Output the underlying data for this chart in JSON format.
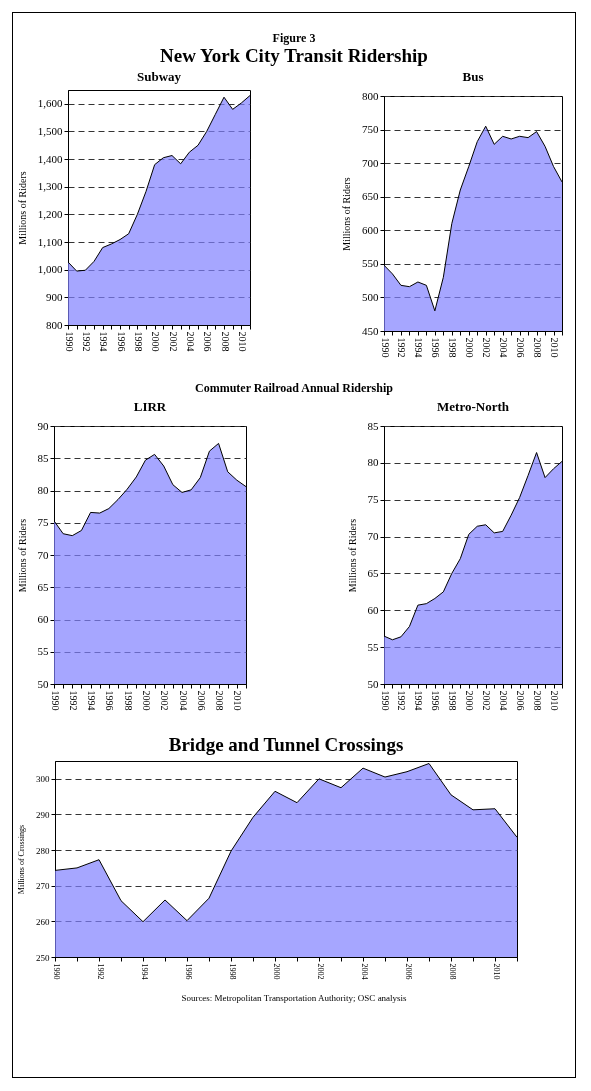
{
  "chart_data": [
    {
      "type": "area",
      "title": "Subway",
      "ylabel": "Millions of Riders",
      "annotations": [
        "Figure 3",
        "New York City Transit Ridership"
      ],
      "categories": [
        "1990",
        null,
        "1992",
        null,
        "1994",
        null,
        "1996",
        null,
        "1998",
        null,
        "2000",
        null,
        "2002",
        null,
        "2004",
        null,
        "2006",
        null,
        "2008",
        null,
        "2010",
        null
      ],
      "series": [
        {
          "color": "#8080ff",
          "values": [
            1028,
            995,
            998,
            1030,
            1080,
            1093,
            1109,
            1130,
            1200,
            1283,
            1380,
            1405,
            1413,
            1383,
            1425,
            1450,
            1500,
            1562,
            1624,
            1580,
            1603,
            1630
          ]
        }
      ],
      "ylim": [
        800,
        1650
      ],
      "yticks": [
        800,
        900,
        {
          "value": 1000,
          "label": "1,000"
        },
        {
          "value": 1100,
          "label": "1,100"
        },
        {
          "value": 1200,
          "label": "1,200"
        },
        {
          "value": 1300,
          "label": "1,300"
        },
        {
          "value": 1400,
          "label": "1,400"
        },
        {
          "value": 1500,
          "label": "1,500"
        },
        {
          "value": 1600,
          "label": "1,600"
        }
      ],
      "grid": "y"
    },
    {
      "type": "area",
      "title": "Bus",
      "ylabel": "Millions of Riders",
      "categories": [
        "1990",
        null,
        "1992",
        null,
        "1994",
        null,
        "1996",
        null,
        "1998",
        null,
        "2000",
        null,
        "2002",
        null,
        "2004",
        null,
        "2006",
        null,
        "2008",
        null,
        "2010",
        null
      ],
      "series": [
        {
          "color": "#8080ff",
          "values": [
            548,
            535,
            518,
            516,
            523,
            518,
            480,
            530,
            610,
            660,
            695,
            732,
            755,
            728,
            740,
            736,
            740,
            738,
            747,
            725,
            695,
            672
          ]
        }
      ],
      "ylim": [
        450,
        800
      ],
      "yticks": [
        450,
        500,
        550,
        600,
        650,
        700,
        750,
        800
      ],
      "grid": "y"
    },
    {
      "type": "area",
      "title": "LIRR",
      "ylabel": "Millions of Riders",
      "annotations": [
        "Commuter Railroad Annual Ridership"
      ],
      "categories": [
        "1990",
        null,
        "1992",
        null,
        "1994",
        null,
        "1996",
        null,
        "1998",
        null,
        "2000",
        null,
        "2002",
        null,
        "2004",
        null,
        "2006",
        null,
        "2008",
        null,
        "2010",
        null
      ],
      "series": [
        {
          "color": "#8080ff",
          "values": [
            75.3,
            73.3,
            73.0,
            73.8,
            76.6,
            76.5,
            77.2,
            78.6,
            80.2,
            82.1,
            84.7,
            85.6,
            83.8,
            80.9,
            79.7,
            80.1,
            82.0,
            86.1,
            87.3,
            82.9,
            81.6,
            80.6
          ]
        }
      ],
      "ylim": [
        50,
        90
      ],
      "yticks": [
        50,
        55,
        60,
        65,
        70,
        75,
        80,
        85,
        90
      ],
      "grid": "y"
    },
    {
      "type": "area",
      "title": "Metro-North",
      "ylabel": "Millions of Riders",
      "categories": [
        "1990",
        null,
        "1992",
        null,
        "1994",
        null,
        "1996",
        null,
        "1998",
        null,
        "2000",
        null,
        "2002",
        null,
        "2004",
        null,
        "2006",
        null,
        "2008",
        null,
        "2010",
        null
      ],
      "series": [
        {
          "color": "#8080ff",
          "values": [
            56.5,
            56.0,
            56.4,
            57.8,
            60.7,
            60.9,
            61.6,
            62.5,
            65.0,
            67.0,
            70.3,
            71.4,
            71.6,
            70.5,
            70.7,
            72.9,
            75.3,
            78.3,
            81.4,
            78.0,
            79.2,
            80.2
          ]
        }
      ],
      "ylim": [
        50,
        85
      ],
      "yticks": [
        50,
        55,
        60,
        65,
        70,
        75,
        80,
        85
      ],
      "grid": "y"
    },
    {
      "type": "area",
      "title": "Bridge and Tunnel Crossings",
      "ylabel": "Millions of Crossings",
      "annotations": [
        "Sources: Metropolitan Transportation Authority; OSC analysis"
      ],
      "categories": [
        "1990",
        null,
        "1992",
        null,
        "1994",
        null,
        "1996",
        null,
        "1998",
        null,
        "2000",
        null,
        "2002",
        null,
        "2004",
        null,
        "2006",
        null,
        "2008",
        null,
        "2010",
        null
      ],
      "series": [
        {
          "color": "#8080ff",
          "values": [
            274.3,
            275.0,
            277.3,
            265.8,
            259.9,
            266.0,
            260.2,
            266.5,
            279.7,
            289.2,
            296.5,
            293.3,
            300.0,
            297.5,
            303.0,
            300.5,
            302.0,
            304.3,
            295.5,
            291.3,
            291.6,
            283.6
          ]
        }
      ],
      "ylim": [
        250,
        305
      ],
      "yticks": [
        250,
        260,
        270,
        280,
        290,
        300
      ],
      "grid": "y"
    }
  ]
}
